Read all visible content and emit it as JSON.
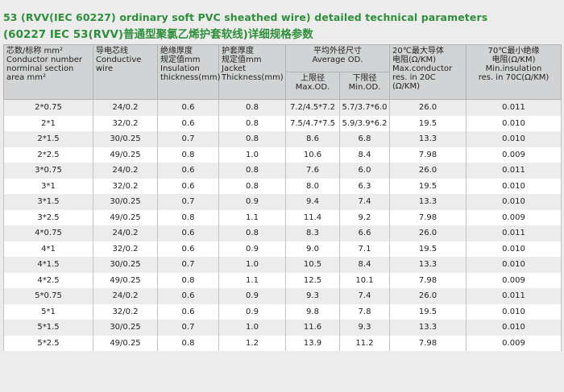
{
  "title_en": "53 (RVV(IEC 60227) ordinary soft PVC sheathed wire) detailed technical parameters",
  "title_cn": "(60227 IEC 53(RVV)普通型聚氯乙烯护套软线)详细规格参数",
  "headers": {
    "conductor_cn": "芯数/标称 mm²",
    "conductor_en1": "Conductor number",
    "conductor_en2": "norminal section area mm²",
    "wire_cn": "导电芯线",
    "wire_en1": "Conductive",
    "wire_en2": "wire",
    "insulation_cn1": "绝缘厚度",
    "insulation_cn2": "规定值mm",
    "insulation_en1": "Insulation",
    "insulation_en2": "thickness(mm)",
    "jacket_cn1": "护套厚度",
    "jacket_cn2": "规定值mm",
    "jacket_en1": "Jacket",
    "jacket_en2": "Thickness(mm)",
    "avg_cn": "平均外径尺寸",
    "avg_en": "Average OD.",
    "upper_cn": "上限径",
    "upper_en": "Max.OD.",
    "lower_cn": "下限径",
    "lower_en": "Min.OD.",
    "maxres_cn1": "20℃最大导体",
    "maxres_cn2": "电阻(Ω/KM)",
    "maxres_en1": "Max.conductor",
    "maxres_en2": "res. in 20C",
    "maxres_unit": "(Ω/KM)",
    "minins_cn1": "70℃最小绝缘",
    "minins_cn2": "电阻(Ω/KM)",
    "minins_en1": "Min.insulation",
    "minins_en2": "res. in 70C(Ω/KM)"
  },
  "rows": [
    {
      "size": "2*0.75",
      "wire": "24/0.2",
      "insulation": "0.6",
      "jacket": "0.8",
      "max_od": "7.2/4.5*7.2",
      "min_od": "5.7/3.7*6.0",
      "max_res": "26.0",
      "min_ins": "0.011"
    },
    {
      "size": "2*1",
      "wire": "32/0.2",
      "insulation": "0.6",
      "jacket": "0.8",
      "max_od": "7.5/4.7*7.5",
      "min_od": "5.9/3.9*6.2",
      "max_res": "19.5",
      "min_ins": "0.010"
    },
    {
      "size": "2*1.5",
      "wire": "30/0.25",
      "insulation": "0.7",
      "jacket": "0.8",
      "max_od": "8.6",
      "min_od": "6.8",
      "max_res": "13.3",
      "min_ins": "0.010"
    },
    {
      "size": "2*2.5",
      "wire": "49/0.25",
      "insulation": "0.8",
      "jacket": "1.0",
      "max_od": "10.6",
      "min_od": "8.4",
      "max_res": "7.98",
      "min_ins": "0.009"
    },
    {
      "size": "3*0.75",
      "wire": "24/0.2",
      "insulation": "0.6",
      "jacket": "0.8",
      "max_od": "7.6",
      "min_od": "6.0",
      "max_res": "26.0",
      "min_ins": "0.011"
    },
    {
      "size": "3*1",
      "wire": "32/0.2",
      "insulation": "0.6",
      "jacket": "0.8",
      "max_od": "8.0",
      "min_od": "6.3",
      "max_res": "19.5",
      "min_ins": "0.010"
    },
    {
      "size": "3*1.5",
      "wire": "30/0.25",
      "insulation": "0.7",
      "jacket": "0.9",
      "max_od": "9.4",
      "min_od": "7.4",
      "max_res": "13.3",
      "min_ins": "0.010"
    },
    {
      "size": "3*2.5",
      "wire": "49/0.25",
      "insulation": "0.8",
      "jacket": "1.1",
      "max_od": "11.4",
      "min_od": "9.2",
      "max_res": "7.98",
      "min_ins": "0.009"
    },
    {
      "size": "4*0.75",
      "wire": "24/0.2",
      "insulation": "0.6",
      "jacket": "0.8",
      "max_od": "8.3",
      "min_od": "6.6",
      "max_res": "26.0",
      "min_ins": "0.011"
    },
    {
      "size": "4*1",
      "wire": "32/0.2",
      "insulation": "0.6",
      "jacket": "0.9",
      "max_od": "9.0",
      "min_od": "7.1",
      "max_res": "19.5",
      "min_ins": "0.010"
    },
    {
      "size": "4*1.5",
      "wire": "30/0.25",
      "insulation": "0.7",
      "jacket": "1.0",
      "max_od": "10.5",
      "min_od": "8.4",
      "max_res": "13.3",
      "min_ins": "0.010"
    },
    {
      "size": "4*2.5",
      "wire": "49/0.25",
      "insulation": "0.8",
      "jacket": "1.1",
      "max_od": "12.5",
      "min_od": "10.1",
      "max_res": "7.98",
      "min_ins": "0.009"
    },
    {
      "size": "5*0.75",
      "wire": "24/0.2",
      "insulation": "0.6",
      "jacket": "0.9",
      "max_od": "9.3",
      "min_od": "7.4",
      "max_res": "26.0",
      "min_ins": "0.011"
    },
    {
      "size": "5*1",
      "wire": "32/0.2",
      "insulation": "0.6",
      "jacket": "0.9",
      "max_od": "9.8",
      "min_od": "7.8",
      "max_res": "19.5",
      "min_ins": "0.010"
    },
    {
      "size": "5*1.5",
      "wire": "30/0.25",
      "insulation": "0.7",
      "jacket": "1.0",
      "max_od": "11.6",
      "min_od": "9.3",
      "max_res": "13.3",
      "min_ins": "0.010"
    },
    {
      "size": "5*2.5",
      "wire": "49/0.25",
      "insulation": "0.8",
      "jacket": "1.2",
      "max_od": "13.9",
      "min_od": "11.2",
      "max_res": "7.98",
      "min_ins": "0.009"
    }
  ]
}
